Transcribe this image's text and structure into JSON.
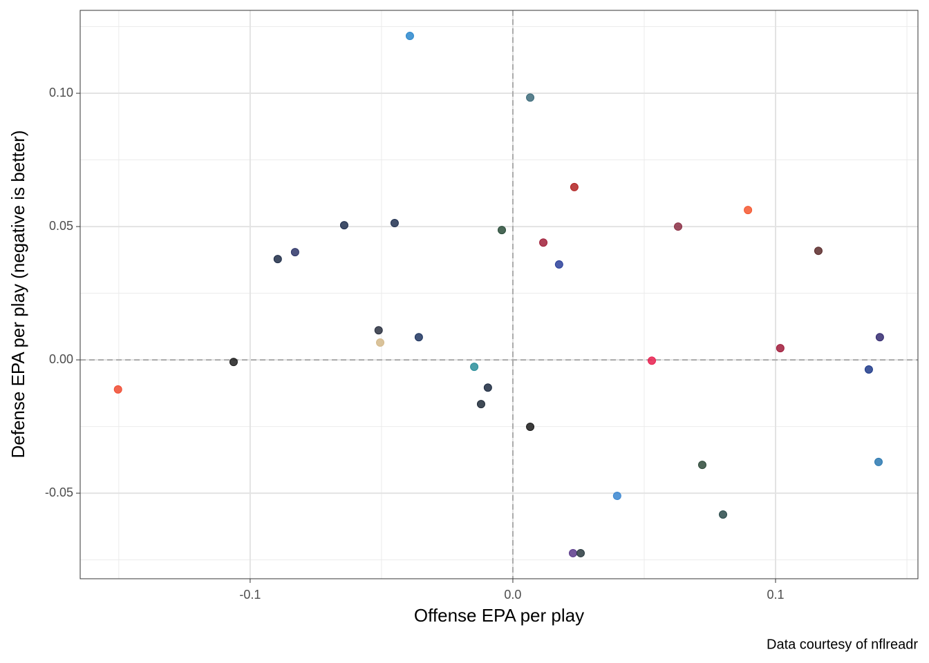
{
  "chart_data": {
    "type": "scatter",
    "x_label": "Offense EPA per play",
    "y_label": "Defense EPA per play (negative is better)",
    "caption": "Data courtesy of nflreadr",
    "xlim": [
      -0.1647,
      0.1542
    ],
    "ylim": [
      -0.0821,
      0.1311
    ],
    "xticks": [
      -0.1,
      {
        "value": 0,
        "label": "0.0"
      },
      0.1
    ],
    "yticks": [
      -0.05,
      {
        "value": 0,
        "label": "0.00"
      },
      0.05,
      {
        "value": 0.1,
        "label": "0.10"
      }
    ],
    "grid": true,
    "reference_lines": {
      "x": 0,
      "y": 0
    },
    "x": [
      -0.0392,
      0.0066,
      0.0234,
      0.0895,
      0.0629,
      -0.0642,
      -0.045,
      -0.0042,
      0.0116,
      0.0176,
      0.1163,
      -0.0895,
      -0.0829,
      -0.0511,
      -0.0505,
      -0.0358,
      0.1018,
      0.1397,
      -0.1063,
      0.0529,
      -0.0147,
      -0.0095,
      0.1355,
      -0.1503,
      -0.0121,
      0.0066,
      0.0721,
      0.1392,
      0.0397,
      0.08,
      0.0229,
      0.0258
    ],
    "values": [
      0.1215,
      0.0984,
      0.0648,
      0.0562,
      0.05,
      0.0505,
      0.0513,
      0.0487,
      0.044,
      0.0358,
      0.0409,
      0.0378,
      0.0404,
      0.0111,
      0.0065,
      0.0085,
      0.0044,
      0.0085,
      -0.0008,
      -0.0003,
      -0.0026,
      -0.0104,
      -0.0036,
      -0.0111,
      -0.0166,
      -0.0251,
      -0.0394,
      -0.0383,
      -0.051,
      -0.058,
      -0.0725,
      -0.0725
    ],
    "colors": [
      "#2b87cc",
      "#3d6b7a",
      "#b22222",
      "#f4572f",
      "#8b2f45",
      "#203050",
      "#203050",
      "#2a4d3a",
      "#a0203a",
      "#2a3f9a",
      "#5a2a2a",
      "#1f2d48",
      "#2e3568",
      "#2a3040",
      "#d4b98a",
      "#1f3560",
      "#a01a3a",
      "#342a70",
      "#202020",
      "#e8204f",
      "#2a8e9a",
      "#1c2a40",
      "#1f3a8a",
      "#f04a30",
      "#1f2a38",
      "#1a1a1a",
      "#2e4a3a",
      "#2a78b0",
      "#3a86d0",
      "#2a4a4a",
      "#5a3a8a",
      "#2a3a40"
    ]
  }
}
